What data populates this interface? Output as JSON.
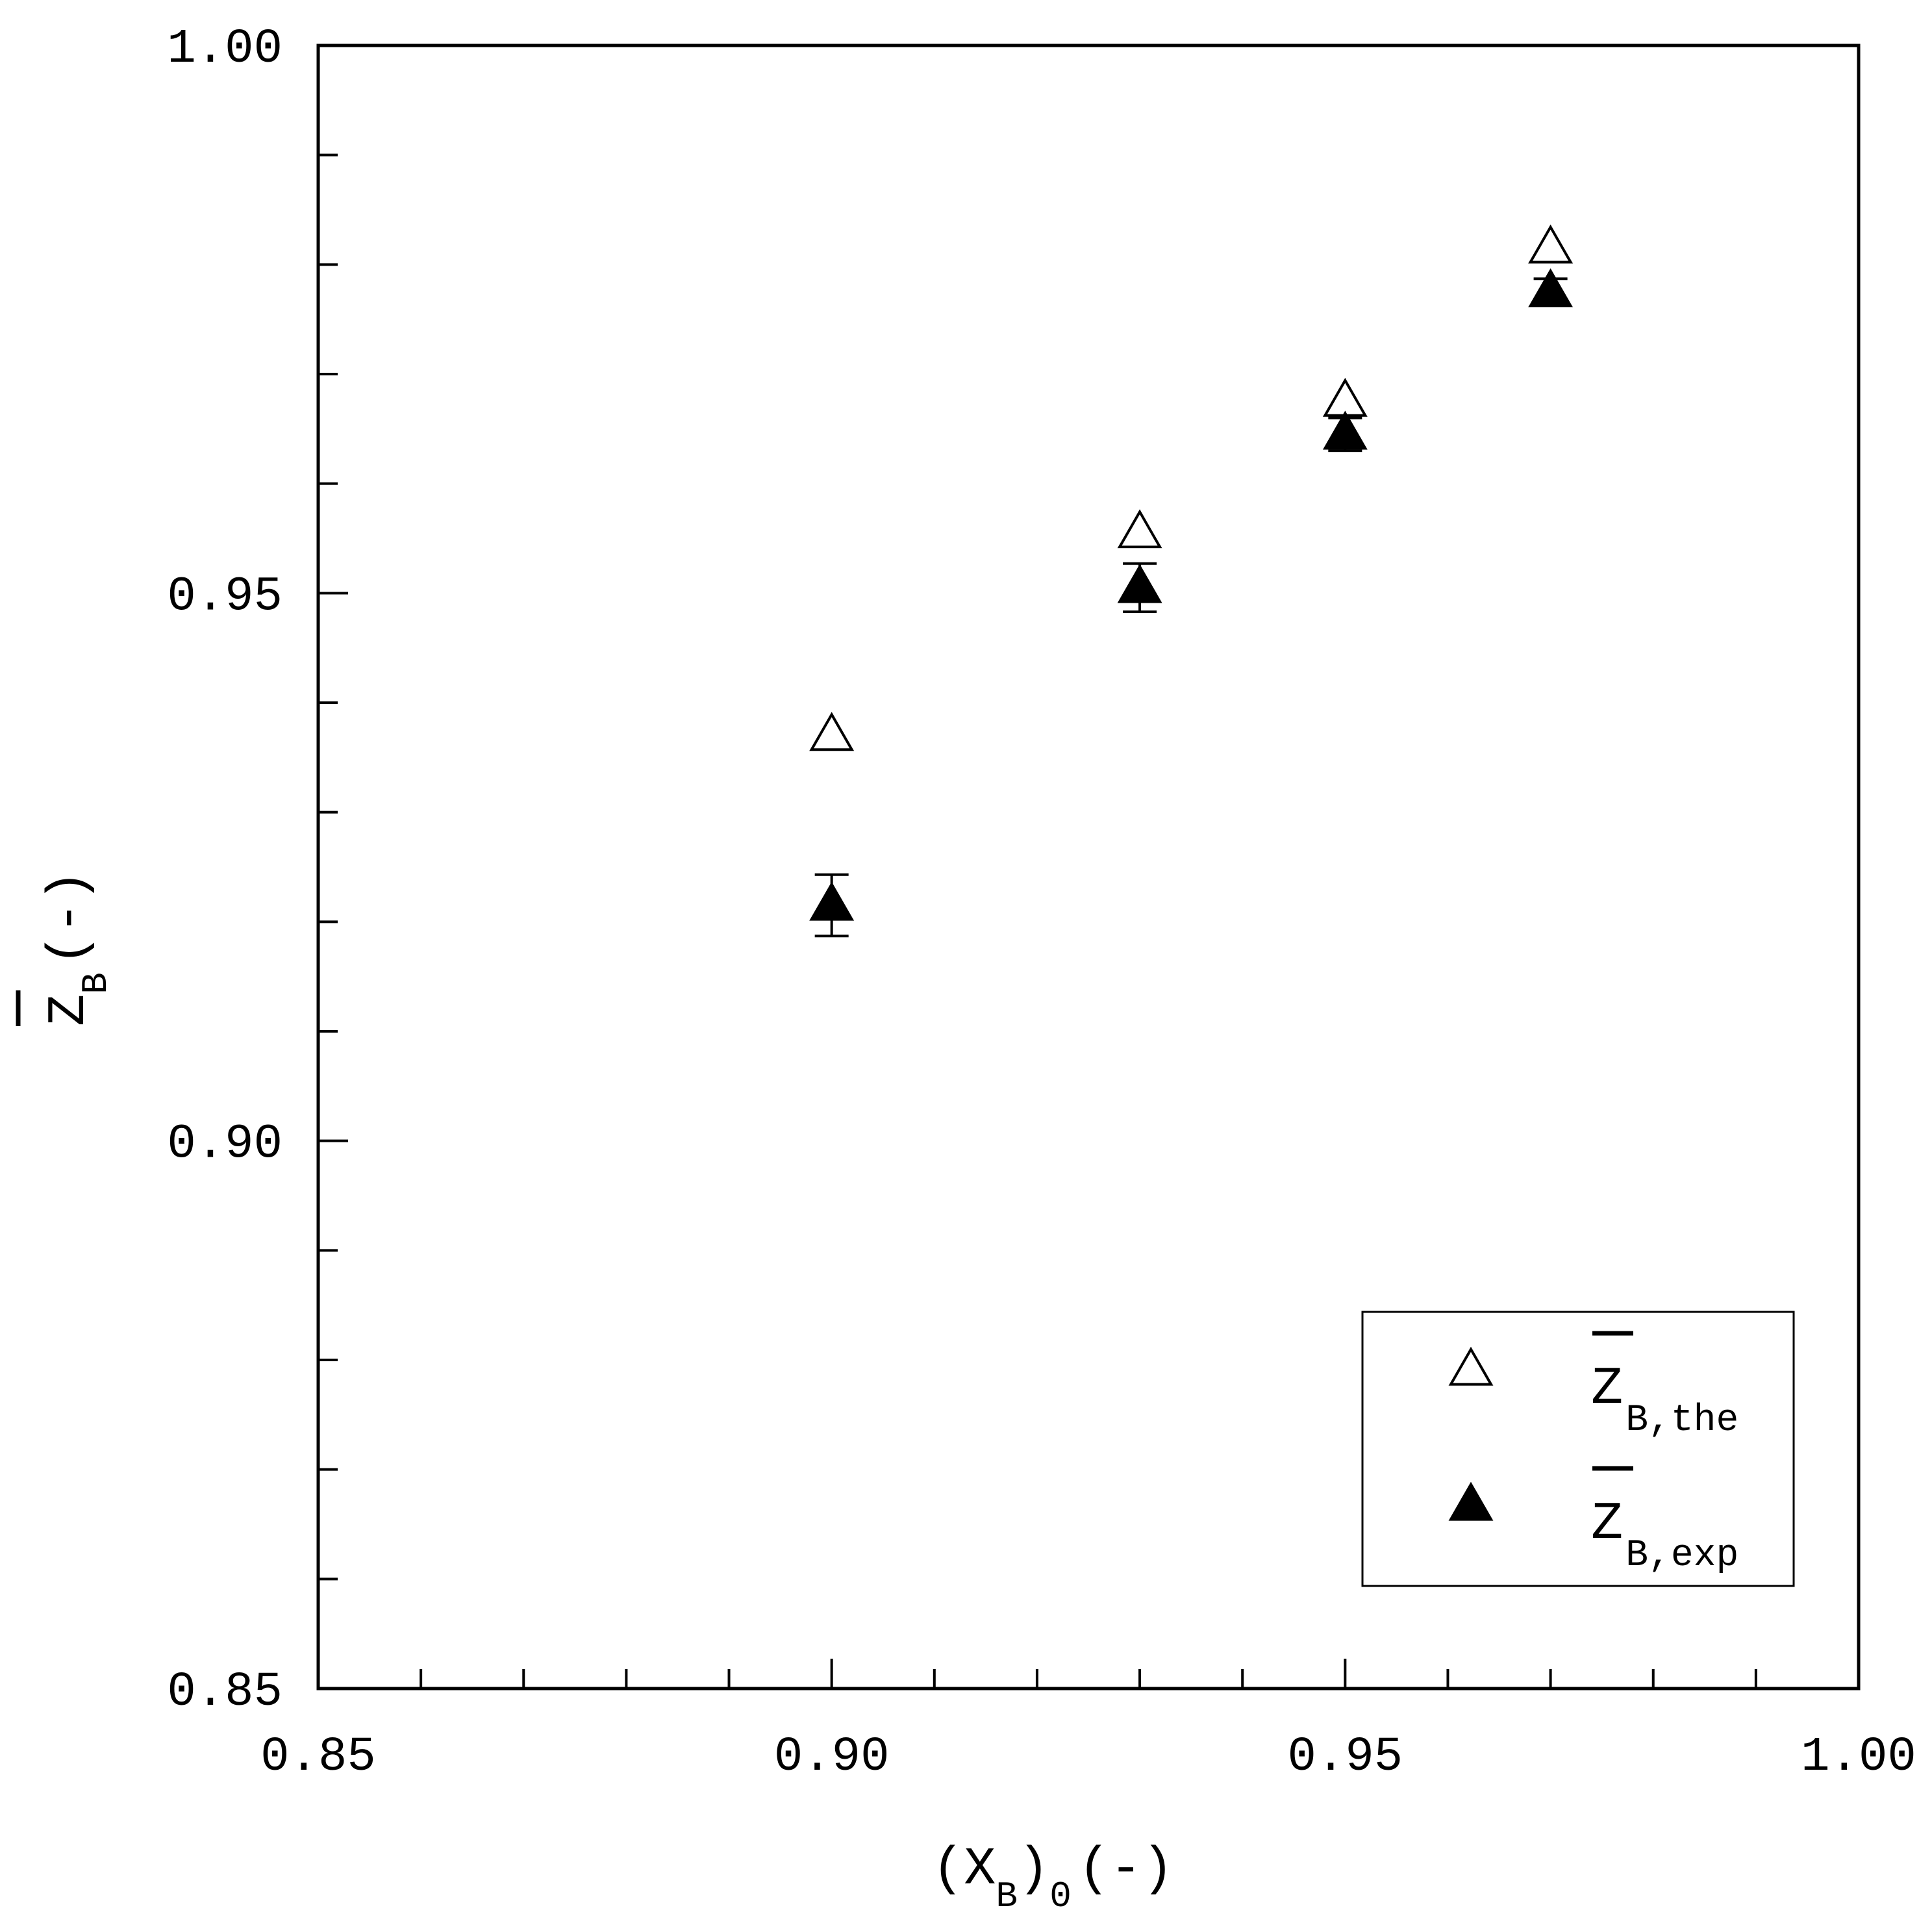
{
  "chart_data": {
    "type": "scatter",
    "x_label": {
      "main": "(X",
      "sub": "B",
      "close": ")",
      "sub2": "0",
      "unit": "(-)"
    },
    "y_label": {
      "main": "Z",
      "sub": "B",
      "unit": "(-)"
    },
    "xlim": [
      0.85,
      1.0
    ],
    "ylim": [
      0.85,
      1.0
    ],
    "x_ticks": [
      0.85,
      0.9,
      0.95,
      1.0
    ],
    "x_tick_labels": [
      "0.85",
      "0.90",
      "0.95",
      "1.00"
    ],
    "y_ticks": [
      0.85,
      0.9,
      0.95,
      1.0
    ],
    "y_tick_labels": [
      "0.85",
      "0.90",
      "0.95",
      "1.00"
    ],
    "x_minor_step": 0.01,
    "y_minor_step": 0.01,
    "grid": false,
    "legend_position": "bottom-right",
    "series": [
      {
        "name": "Z B,the",
        "legend_main": "Z",
        "legend_sub": "B,the",
        "marker": "open-triangle",
        "x": [
          0.9,
          0.93,
          0.95,
          0.97
        ],
        "y": [
          0.937,
          0.9555,
          0.9675,
          0.9815
        ]
      },
      {
        "name": "Z B,exp",
        "legend_main": "Z",
        "legend_sub": "B,exp",
        "marker": "filled-triangle",
        "x": [
          0.9,
          0.93,
          0.95,
          0.97
        ],
        "y": [
          0.9215,
          0.9505,
          0.9645,
          0.9775
        ],
        "error": [
          0.0028,
          0.0022,
          0.0015,
          0.0012
        ]
      }
    ]
  }
}
